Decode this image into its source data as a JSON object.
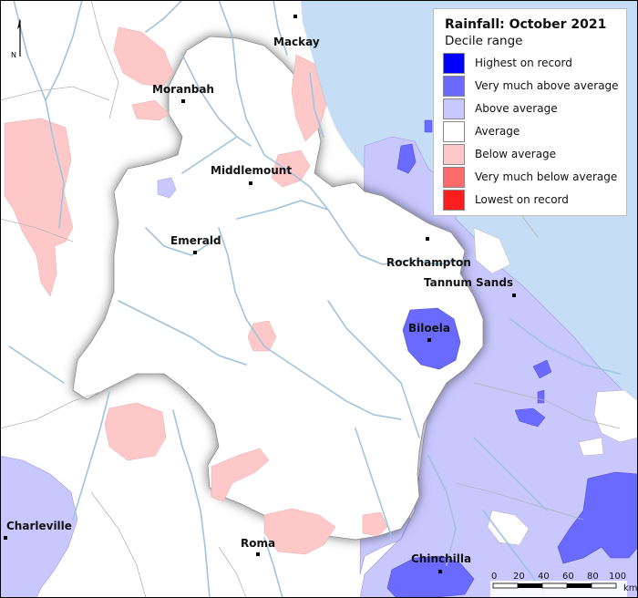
{
  "legend": {
    "title": "Rainfall: October 2021",
    "subtitle": "Decile range",
    "items": [
      {
        "label": "Highest on record",
        "color": "#0000ff"
      },
      {
        "label": "Very much above average",
        "color": "#6a6aff"
      },
      {
        "label": "Above average",
        "color": "#c8c8ff"
      },
      {
        "label": "Average",
        "color": "#ffffff"
      },
      {
        "label": "Below average",
        "color": "#ffc8c8"
      },
      {
        "label": "Very much below average",
        "color": "#ff6a6a"
      },
      {
        "label": "Lowest on record",
        "color": "#ff1e1e"
      }
    ]
  },
  "north_arrow": {
    "label": "N"
  },
  "places": {
    "mackay": "Mackay",
    "moranbah": "Moranbah",
    "middlemount": "Middlemount",
    "emerald": "Emerald",
    "rockhampton": "Rockhampton",
    "tannum_sands": "Tannum Sands",
    "biloela": "Biloela",
    "charleville": "Charleville",
    "roma": "Roma",
    "chinchilla": "Chinchilla"
  },
  "scale_bar": {
    "ticks": [
      "0",
      "20",
      "40",
      "60",
      "80",
      "100"
    ],
    "unit": "km"
  },
  "colors": {
    "ocean": "#c6def5",
    "land": "#ffffff",
    "river": "#9fc3de",
    "border": "#b4b4b4"
  }
}
